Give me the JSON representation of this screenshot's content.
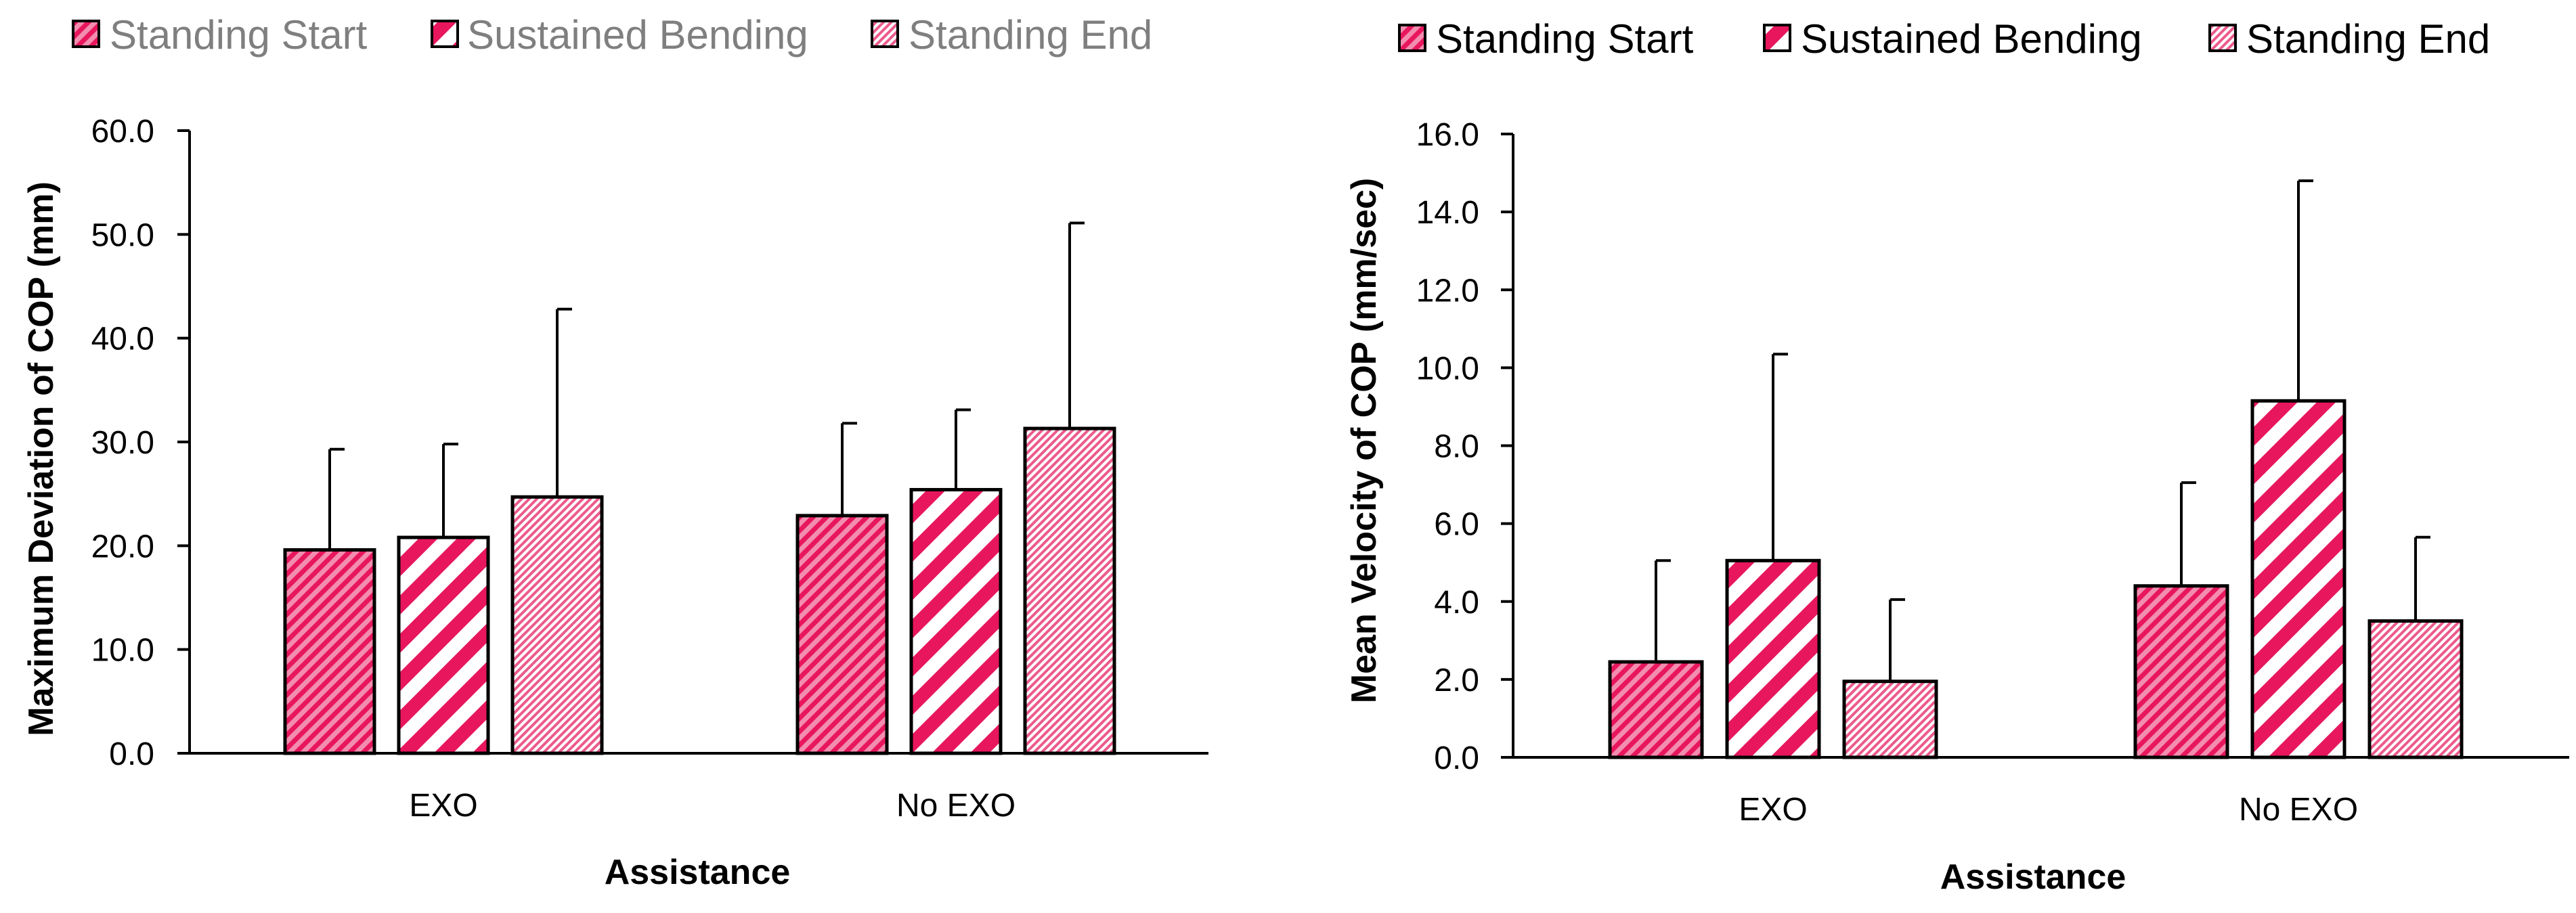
{
  "colors": {
    "bar_fill": "#e8175d",
    "bar_light": "#f6a9c2",
    "outline": "#000000",
    "legend_text_left": "#7f7f7f",
    "legend_text_right": "#000000"
  },
  "chart_data": [
    {
      "type": "bar",
      "title": "",
      "xlabel": "Assistance",
      "ylabel": "Maximum Deviation of COP (mm)",
      "categories": [
        "EXO",
        "No EXO"
      ],
      "ylim": [
        0,
        60
      ],
      "yticks": [
        "0.0",
        "10.0",
        "20.0",
        "30.0",
        "40.0",
        "50.0",
        "60.0"
      ],
      "legend_position": "top",
      "series": [
        {
          "name": "Standing Start",
          "pattern": "wide-diagonal",
          "values": [
            19.6,
            22.9
          ],
          "error": [
            9.7,
            8.9
          ]
        },
        {
          "name": "Sustained Bending",
          "pattern": "bold-stripe",
          "values": [
            20.8,
            25.4
          ],
          "error": [
            9.0,
            7.7
          ]
        },
        {
          "name": "Standing End",
          "pattern": "fine-dots",
          "values": [
            24.7,
            31.3
          ],
          "error": [
            18.1,
            19.8
          ]
        }
      ]
    },
    {
      "type": "bar",
      "title": "",
      "xlabel": "Assistance",
      "ylabel": "Mean Velocity of COP (mm/sec)",
      "categories": [
        "EXO",
        "No EXO"
      ],
      "ylim": [
        0,
        16
      ],
      "yticks": [
        "0.0",
        "2.0",
        "4.0",
        "6.0",
        "8.0",
        "10.0",
        "12.0",
        "14.0",
        "16.0"
      ],
      "legend_position": "top",
      "series": [
        {
          "name": "Standing Start",
          "pattern": "wide-diagonal",
          "values": [
            2.45,
            4.4
          ],
          "error": [
            2.6,
            2.65
          ]
        },
        {
          "name": "Sustained Bending",
          "pattern": "bold-stripe",
          "values": [
            5.05,
            9.15
          ],
          "error": [
            5.3,
            5.65
          ]
        },
        {
          "name": "Standing End",
          "pattern": "fine-dots",
          "values": [
            1.95,
            3.5
          ],
          "error": [
            2.1,
            2.15
          ]
        }
      ]
    }
  ]
}
